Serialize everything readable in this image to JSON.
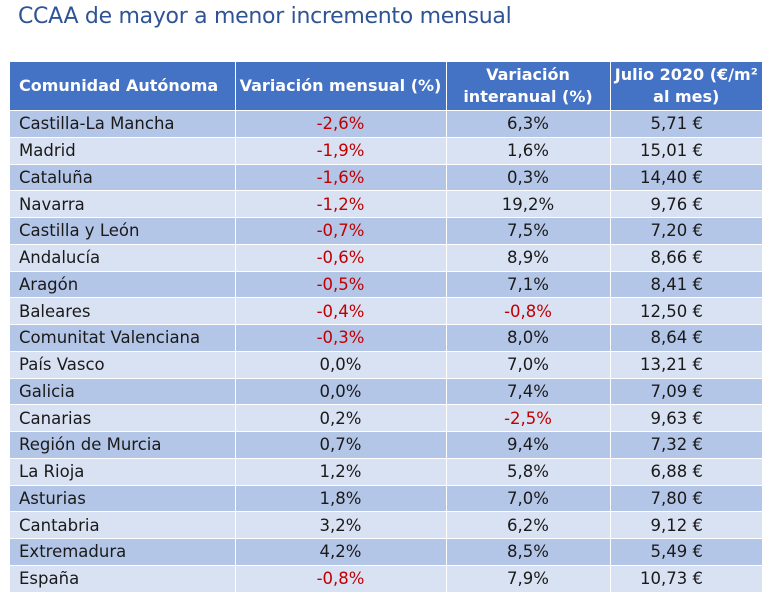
{
  "title": "CCAA de mayor a menor incremento mensual",
  "headers": [
    "Comunidad Autónoma",
    "Variación mensual (%)",
    "Variación interanual (%)",
    "Julio 2020 (€/m² al mes)"
  ],
  "colors": {
    "header_bg": "#4472c4",
    "row_dark": "#b4c6e7",
    "row_light": "#d9e2f3",
    "negative": "#c00000",
    "title": "#2f5496"
  },
  "rows": [
    [
      "Castilla-La Mancha",
      "-2,6%",
      "6,3%",
      "5,71 €"
    ],
    [
      "Madrid",
      "-1,9%",
      "1,6%",
      "15,01 €"
    ],
    [
      "Cataluña",
      "-1,6%",
      "0,3%",
      "14,40 €"
    ],
    [
      "Navarra",
      "-1,2%",
      "19,2%",
      "9,76 €"
    ],
    [
      "Castilla y León",
      "-0,7%",
      "7,5%",
      "7,20 €"
    ],
    [
      "Andalucía",
      "-0,6%",
      "8,9%",
      "8,66 €"
    ],
    [
      "Aragón",
      "-0,5%",
      "7,1%",
      "8,41 €"
    ],
    [
      "Baleares",
      "-0,4%",
      "-0,8%",
      "12,50 €"
    ],
    [
      "Comunitat Valenciana",
      "-0,3%",
      "8,0%",
      "8,64 €"
    ],
    [
      "País Vasco",
      "0,0%",
      "7,0%",
      "13,21 €"
    ],
    [
      "Galicia",
      "0,0%",
      "7,4%",
      "7,09 €"
    ],
    [
      "Canarias",
      "0,2%",
      "-2,5%",
      "9,63 €"
    ],
    [
      "Región de Murcia",
      "0,7%",
      "9,4%",
      "7,32 €"
    ],
    [
      "La Rioja",
      "1,2%",
      "5,8%",
      "6,88 €"
    ],
    [
      "Asturias",
      "1,8%",
      "7,0%",
      "7,80 €"
    ],
    [
      "Cantabria",
      "3,2%",
      "6,2%",
      "9,12 €"
    ],
    [
      "Extremadura",
      "4,2%",
      "8,5%",
      "5,49 €"
    ],
    [
      "España",
      "-0,8%",
      "7,9%",
      "10,73 €"
    ]
  ]
}
